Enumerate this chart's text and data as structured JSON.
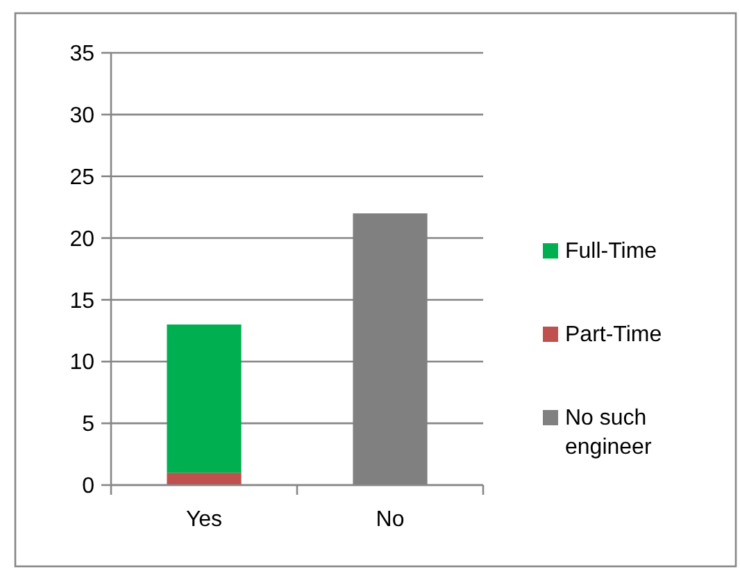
{
  "chart_data": {
    "type": "bar",
    "stacked": true,
    "categories": [
      "Yes",
      "No"
    ],
    "series": [
      {
        "name": "No such engineer",
        "color": "#808080",
        "values": [
          null,
          22
        ]
      },
      {
        "name": "Part-Time",
        "color": "#c0504d",
        "values": [
          1,
          null
        ]
      },
      {
        "name": "Full-Time",
        "color": "#00b050",
        "values": [
          12,
          null
        ]
      }
    ],
    "ylim": [
      0,
      35
    ],
    "yticks": [
      0,
      5,
      10,
      15,
      20,
      25,
      30,
      35
    ],
    "grid": "y",
    "legend": "right"
  }
}
